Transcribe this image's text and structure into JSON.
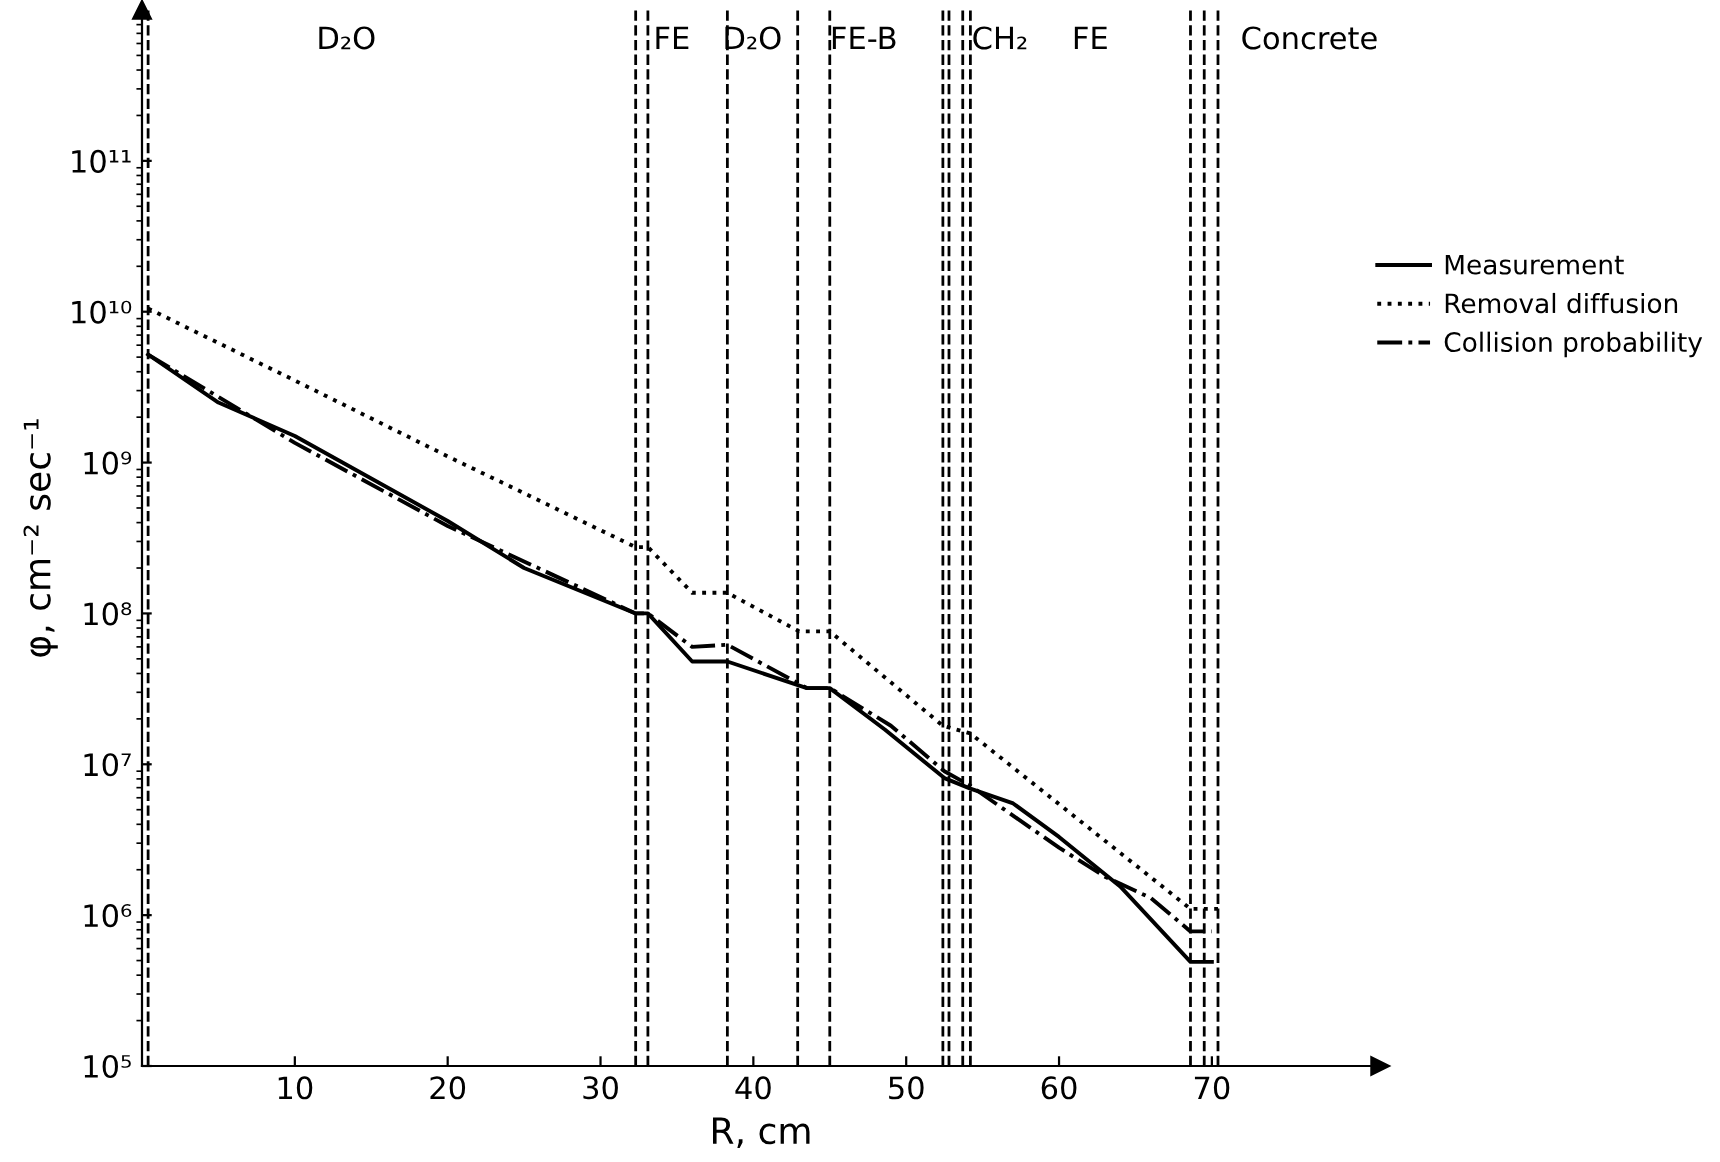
{
  "chart_data": {
    "type": "line",
    "xlabel": "R, cm",
    "ylabel": "φ, cm⁻² sec⁻¹",
    "log": "y",
    "xlim": [
      0,
      81
    ],
    "ylim": [
      100000,
      1000000000000
    ],
    "xticks": [
      10,
      20,
      30,
      40,
      50,
      60,
      70
    ],
    "yticks": [
      {
        "value": 100000,
        "label": "10⁵"
      },
      {
        "value": 1000000,
        "label": "10⁶"
      },
      {
        "value": 10000000,
        "label": "10⁷"
      },
      {
        "value": 100000000,
        "label": "10⁸"
      },
      {
        "value": 1000000000,
        "label": "10⁹"
      },
      {
        "value": 10000000000,
        "label": "10¹⁰"
      },
      {
        "value": 100000000000,
        "label": "10¹¹"
      }
    ],
    "grid": false,
    "legend": "right",
    "series": [
      {
        "name": "Measurement",
        "color": "#000000",
        "line_style": "solid",
        "x": [
          0.4,
          5,
          10,
          20,
          25,
          32.3,
          33.1,
          36,
          38.3,
          43.5,
          45,
          48.6,
          52.5,
          54.2,
          57,
          60,
          64,
          68.6,
          70
        ],
        "values": [
          5200000000,
          2500000000,
          1500000000,
          410000000,
          200000000,
          100000000,
          100000000,
          48000000,
          48000000,
          32000000,
          32000000,
          17000000,
          8100000,
          6900000,
          5500000,
          3300000,
          1550000,
          490000,
          490000
        ]
      },
      {
        "name": "Removal diffusion",
        "color": "#000000",
        "line_style": "dotted",
        "x": [
          0.4,
          10,
          20,
          32.3,
          33.1,
          36,
          38.3,
          43,
          45,
          52.4,
          54.2,
          68.6,
          70.4
        ],
        "values": [
          10500000000,
          3500000000,
          1100000000,
          275000000,
          275000000,
          137000000,
          137000000,
          76000000,
          76000000,
          18000000,
          16000000,
          1100000,
          1100000
        ]
      },
      {
        "name": "Collision probability",
        "color": "#000000",
        "line_style": "dashdot",
        "x": [
          0.4,
          10,
          20,
          32.3,
          33.1,
          36,
          38.3,
          43.5,
          45,
          49,
          52.5,
          54.2,
          60,
          63,
          66,
          68.6,
          70
        ],
        "values": [
          5200000000,
          1350000000,
          380000000,
          100000000,
          100000000,
          60000000,
          62000000,
          32000000,
          32000000,
          18000000,
          9000000,
          7200000,
          2800000,
          1800000,
          1300000,
          780000,
          780000
        ]
      }
    ],
    "ref_lines": [
      {
        "axis": "x",
        "value": 0.4,
        "line_style": "dashed",
        "color": "#000000"
      },
      {
        "axis": "x",
        "value": 32.3,
        "line_style": "dashed",
        "color": "#000000"
      },
      {
        "axis": "x",
        "value": 33.1,
        "line_style": "dashed",
        "color": "#000000"
      },
      {
        "axis": "x",
        "value": 38.3,
        "line_style": "dashed",
        "color": "#000000"
      },
      {
        "axis": "x",
        "value": 42.9,
        "line_style": "dashed",
        "color": "#000000"
      },
      {
        "axis": "x",
        "value": 45,
        "line_style": "dashed",
        "color": "#000000"
      },
      {
        "axis": "x",
        "value": 52.4,
        "line_style": "dashed",
        "color": "#000000"
      },
      {
        "axis": "x",
        "value": 52.8,
        "line_style": "dashed",
        "color": "#000000"
      },
      {
        "axis": "x",
        "value": 53.7,
        "line_style": "dashed",
        "color": "#000000"
      },
      {
        "axis": "x",
        "value": 54.2,
        "line_style": "dashed",
        "color": "#000000"
      },
      {
        "axis": "x",
        "value": 68.6,
        "line_style": "dashed",
        "color": "#000000"
      },
      {
        "axis": "x",
        "value": 69.5,
        "line_style": "dashed",
        "color": "#000000"
      },
      {
        "axis": "x",
        "value": 70.4,
        "line_style": "dashed",
        "color": "#000000"
      }
    ],
    "annotations": [
      "D₂O",
      "FE",
      "D₂O",
      "FE-B",
      "CH₂",
      "FE",
      "Concrete"
    ]
  }
}
